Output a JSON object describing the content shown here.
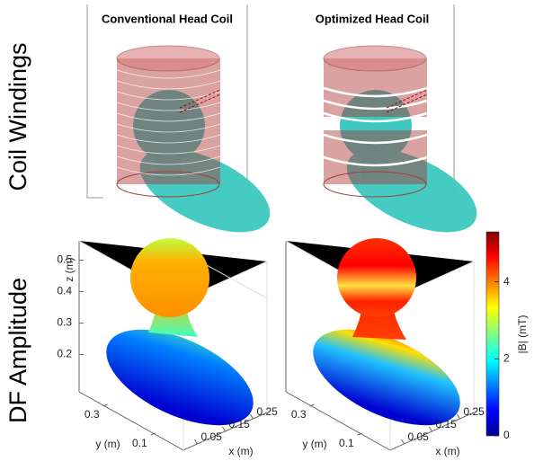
{
  "row_labels": [
    "Coil Windings",
    "DF Amplitude"
  ],
  "panels": [
    {
      "title": "Conventional Head Coil",
      "zlabel": "z (m)",
      "zlim": [
        0.17,
        0.55
      ],
      "zticks": [
        0.2,
        0.3,
        0.4,
        0.5
      ],
      "ylabel": "y (m)",
      "ylim": [
        0.4,
        0.05
      ],
      "yticks": [
        0.1,
        0.3
      ],
      "xlabel": "x (m)",
      "xlim": [
        0,
        0.3
      ],
      "xticks": [
        0.05,
        0.15,
        0.25
      ]
    },
    {
      "title": "Optimized Head Coil",
      "ylabel": "y (m)",
      "ylim": [
        0.4,
        0.05
      ],
      "yticks": [
        0.1,
        0.3
      ],
      "xlabel": "x (m)",
      "xlim": [
        0,
        0.3
      ],
      "xticks": [
        0.05,
        0.15,
        0.25
      ]
    }
  ],
  "colorbar": {
    "label": "|B| (mT)",
    "lim": [
      0,
      5.3
    ],
    "ticks": [
      0,
      2,
      4
    ]
  }
}
